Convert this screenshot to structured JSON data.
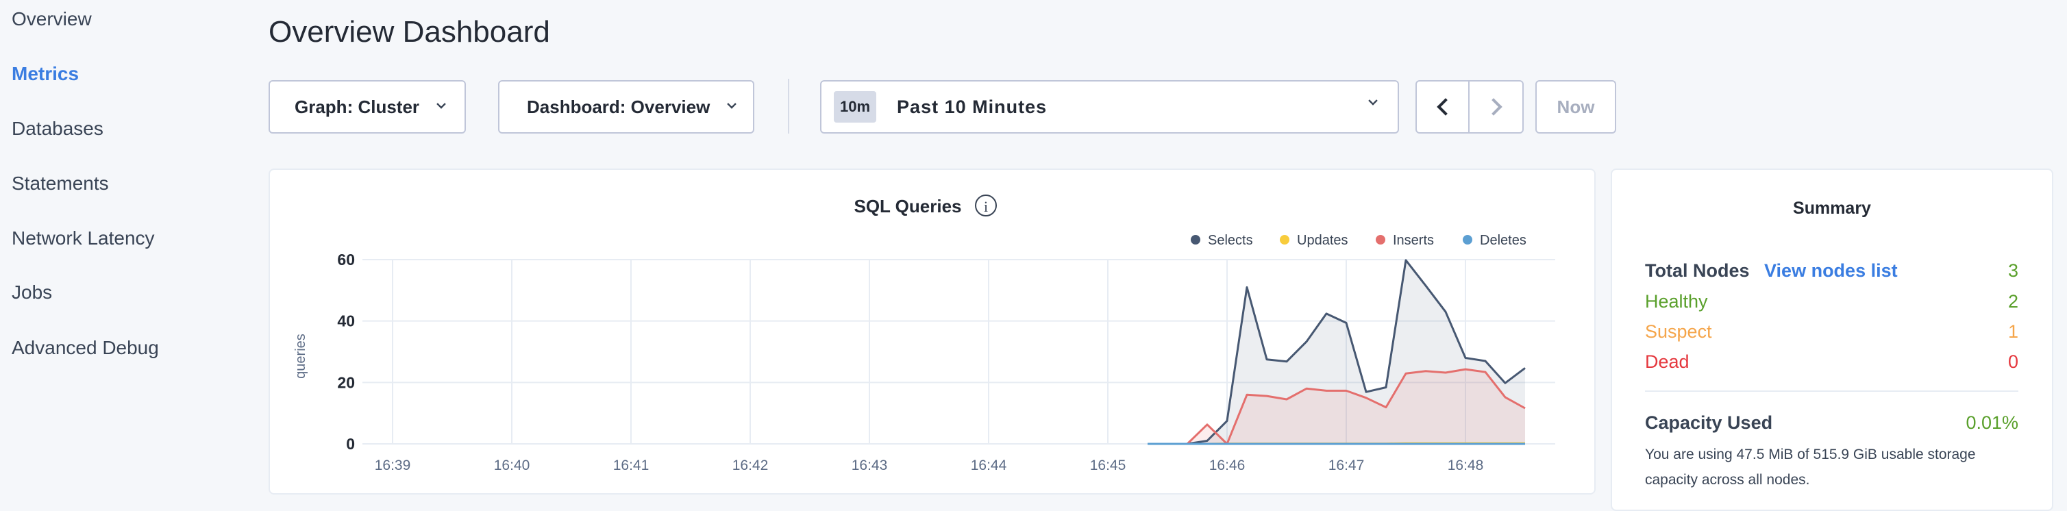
{
  "sidebar": {
    "items": [
      {
        "label": "Overview",
        "active": false
      },
      {
        "label": "Metrics",
        "active": true
      },
      {
        "label": "Databases",
        "active": false
      },
      {
        "label": "Statements",
        "active": false
      },
      {
        "label": "Network Latency",
        "active": false
      },
      {
        "label": "Jobs",
        "active": false
      },
      {
        "label": "Advanced Debug",
        "active": false
      }
    ]
  },
  "header": {
    "title": "Overview Dashboard"
  },
  "toolbar": {
    "graph": "Graph: Cluster",
    "dashboard": "Dashboard: Overview",
    "time_badge": "10m",
    "time_range": "Past 10 Minutes",
    "now": "Now"
  },
  "chart": {
    "title": "SQL Queries",
    "ylabel": "queries"
  },
  "colors": {
    "selects": "#475872",
    "updates": "#f8cc3c",
    "inserts": "#e46f6d",
    "deletes": "#5c9fd2",
    "healthy": "#5aa02c",
    "suspect": "#f5a54a",
    "dead": "#e5383e",
    "link": "#3a7de1"
  },
  "chart_data": {
    "type": "area",
    "title": "SQL Queries",
    "xlabel": "",
    "ylabel": "queries",
    "ylim": [
      0,
      60
    ],
    "yticks": [
      "0",
      "20",
      "40",
      "60"
    ],
    "xticks": [
      "16:39",
      "16:40",
      "16:41",
      "16:42",
      "16:43",
      "16:44",
      "16:45",
      "16:46",
      "16:47",
      "16:48"
    ],
    "grid": true,
    "legend": "top-right",
    "x": [
      "16:45:20",
      "16:45:30",
      "16:45:40",
      "16:45:50",
      "16:46:00",
      "16:46:10",
      "16:46:20",
      "16:46:30",
      "16:46:40",
      "16:46:50",
      "16:47:00",
      "16:47:10",
      "16:47:20",
      "16:47:30",
      "16:47:40",
      "16:47:50",
      "16:48:00",
      "16:48:10",
      "16:48:20",
      "16:48:30"
    ],
    "series": [
      {
        "name": "Selects",
        "values": [
          0,
          0,
          0,
          1,
          7.5,
          51,
          27.5,
          26.8,
          33.3,
          42.4,
          39.4,
          16.9,
          18.4,
          59.8,
          51.5,
          43,
          28,
          27,
          19.8,
          24.7
        ]
      },
      {
        "name": "Updates",
        "values": [
          0,
          0,
          0,
          0,
          0.1,
          0.1,
          0.1,
          0.1,
          0.1,
          0.1,
          0.1,
          0.1,
          0.1,
          0.2,
          0.2,
          0.2,
          0.2,
          0.2,
          0.2,
          0.2
        ]
      },
      {
        "name": "Inserts",
        "values": [
          0,
          0,
          0,
          6.3,
          0,
          16,
          15.6,
          14.5,
          18,
          17.3,
          17.3,
          15,
          11.9,
          22.9,
          23.7,
          23.2,
          24.3,
          23.4,
          15.2,
          11.6
        ]
      },
      {
        "name": "Deletes",
        "values": [
          0,
          0,
          0,
          0,
          0,
          0,
          0,
          0,
          0,
          0,
          0,
          0,
          0,
          0,
          0,
          0,
          0,
          0,
          0,
          0
        ]
      }
    ]
  },
  "summary": {
    "title": "Summary",
    "total_label": "Total Nodes",
    "view_link": "View nodes list",
    "total": "3",
    "healthy_label": "Healthy",
    "healthy": "2",
    "suspect_label": "Suspect",
    "suspect": "1",
    "dead_label": "Dead",
    "dead": "0",
    "capacity_label": "Capacity Used",
    "capacity": "0.01%",
    "capacity_text": "You are using 47.5 MiB of 515.9 GiB usable storage capacity across all nodes."
  }
}
